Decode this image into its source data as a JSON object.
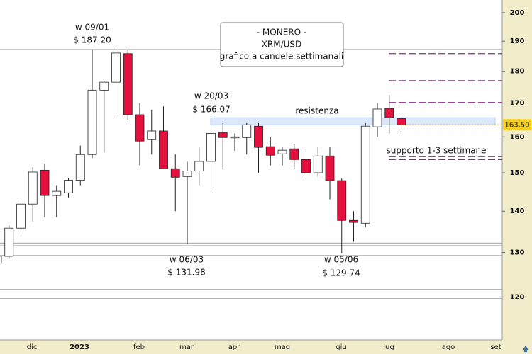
{
  "chart_data": {
    "type": "candlestick",
    "title_lines": [
      "- MONERO -",
      "XRM/USD",
      "grafico a candele settimanali"
    ],
    "log_scale": true,
    "ylim": [
      111.1,
      204.6
    ],
    "yticks": [
      120,
      130,
      140,
      150,
      160,
      170,
      180,
      190,
      200
    ],
    "xtick_labels": [
      "dic",
      "2023",
      "feb",
      "mar",
      "apr",
      "mag",
      "giu",
      "lug",
      "ago",
      "set"
    ],
    "up_color": "#ffffff",
    "down_color": "#e5103e",
    "last_price": {
      "value": 163.5,
      "label": "163,50"
    },
    "candles": [
      {
        "open": 127.5,
        "high": 131,
        "low": 125.5,
        "close": 129.1
      },
      {
        "open": 129.1,
        "high": 136.5,
        "low": 128.5,
        "close": 135.8
      },
      {
        "open": 135.8,
        "high": 142.5,
        "low": 133.5,
        "close": 141.8
      },
      {
        "open": 141.8,
        "high": 151.5,
        "low": 137.5,
        "close": 150.2
      },
      {
        "open": 150.7,
        "high": 152.5,
        "low": 138.5,
        "close": 144.0
      },
      {
        "open": 144.0,
        "high": 146.5,
        "low": 138.5,
        "close": 145.1
      },
      {
        "open": 144.7,
        "high": 148.5,
        "low": 143.5,
        "close": 148.0
      },
      {
        "open": 148.0,
        "high": 157.5,
        "low": 146.5,
        "close": 155.0
      },
      {
        "open": 155.0,
        "high": 187.2,
        "low": 154,
        "close": 174.0
      },
      {
        "open": 174.0,
        "high": 177,
        "low": 155.5,
        "close": 176.5
      },
      {
        "open": 176.5,
        "high": 187,
        "low": 166,
        "close": 186.0
      },
      {
        "open": 185.8,
        "high": 187,
        "low": 165,
        "close": 166.5
      },
      {
        "open": 166.5,
        "high": 170,
        "low": 152,
        "close": 158.8
      },
      {
        "open": 159.2,
        "high": 168,
        "low": 155,
        "close": 161.7
      },
      {
        "open": 161.7,
        "high": 169,
        "low": 151,
        "close": 151.1
      },
      {
        "open": 151.1,
        "high": 155,
        "low": 140,
        "close": 148.8
      },
      {
        "open": 149.0,
        "high": 153,
        "low": 131.98,
        "close": 150.5
      },
      {
        "open": 150.5,
        "high": 157,
        "low": 146.5,
        "close": 153.1
      },
      {
        "open": 153.1,
        "high": 166.07,
        "low": 145,
        "close": 161.0
      },
      {
        "open": 161.3,
        "high": 164,
        "low": 151,
        "close": 159.8
      },
      {
        "open": 159.8,
        "high": 161,
        "low": 156,
        "close": 160.0
      },
      {
        "open": 159.8,
        "high": 164,
        "low": 155,
        "close": 163.5
      },
      {
        "open": 163.1,
        "high": 164,
        "low": 150,
        "close": 157.0
      },
      {
        "open": 157.2,
        "high": 160,
        "low": 152,
        "close": 154.8
      },
      {
        "open": 155.2,
        "high": 157,
        "low": 152,
        "close": 156.2
      },
      {
        "open": 156.6,
        "high": 158,
        "low": 151,
        "close": 153.6
      },
      {
        "open": 153.6,
        "high": 156,
        "low": 149,
        "close": 150.0
      },
      {
        "open": 150.0,
        "high": 157,
        "low": 149,
        "close": 154.6
      },
      {
        "open": 154.6,
        "high": 157,
        "low": 143,
        "close": 147.9
      },
      {
        "open": 147.9,
        "high": 148.5,
        "low": 129.74,
        "close": 137.7
      },
      {
        "open": 137.7,
        "high": 140,
        "low": 132.5,
        "close": 137.2
      },
      {
        "open": 137.0,
        "high": 164,
        "low": 136,
        "close": 163.1
      },
      {
        "open": 162.9,
        "high": 170,
        "low": 160,
        "close": 168.2
      },
      {
        "open": 168.4,
        "high": 172.5,
        "low": 161,
        "close": 165.6
      },
      {
        "open": 165.4,
        "high": 166.5,
        "low": 161.5,
        "close": 163.5
      }
    ],
    "hlines": [
      187.2,
      132.2,
      131.6,
      129.3,
      121.7,
      119.7
    ],
    "dashed_levels": [
      185.8,
      177.0,
      170.2,
      154.4,
      153.6
    ],
    "resistance_band": [
      163.5,
      165.6
    ],
    "annotations": [
      "w 09/01",
      "$ 187.20",
      "w 20/03",
      "$ 166.07",
      "w 06/03",
      "$ 131.98",
      "w 05/06",
      "$ 129.74",
      "resistenza",
      "supporto 1-3 settimane"
    ]
  }
}
